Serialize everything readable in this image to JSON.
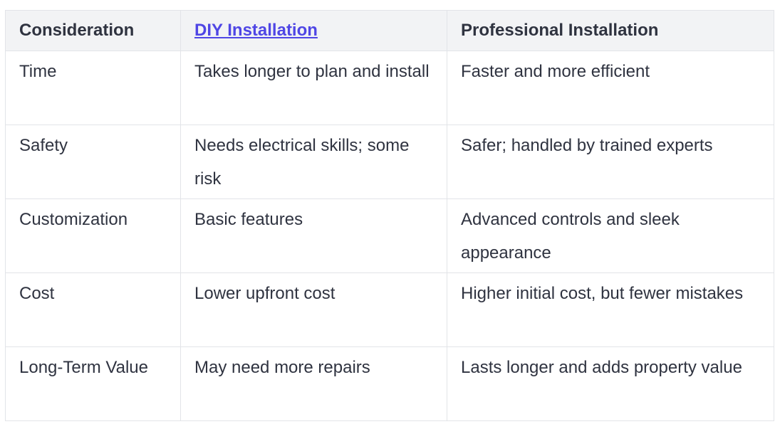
{
  "table": {
    "headers": [
      "Consideration",
      "DIY Installation",
      "Professional Installation"
    ],
    "rows": [
      [
        "Time",
        "Takes longer to plan and install",
        "Faster and more efficient"
      ],
      [
        "Safety",
        "Needs electrical skills; some risk",
        "Safer; handled by trained experts"
      ],
      [
        "Customization",
        "Basic features",
        "Advanced controls and sleek appearance"
      ],
      [
        "Cost",
        "Lower upfront cost",
        "Higher initial cost, but fewer mistakes"
      ],
      [
        "Long-Term Value",
        "May need more repairs",
        "Lasts longer and adds property value"
      ]
    ]
  },
  "colors": {
    "link": "#4f46e5",
    "header_bg": "#f2f3f5",
    "text": "#2f3340",
    "border": "#e2e4e8"
  }
}
